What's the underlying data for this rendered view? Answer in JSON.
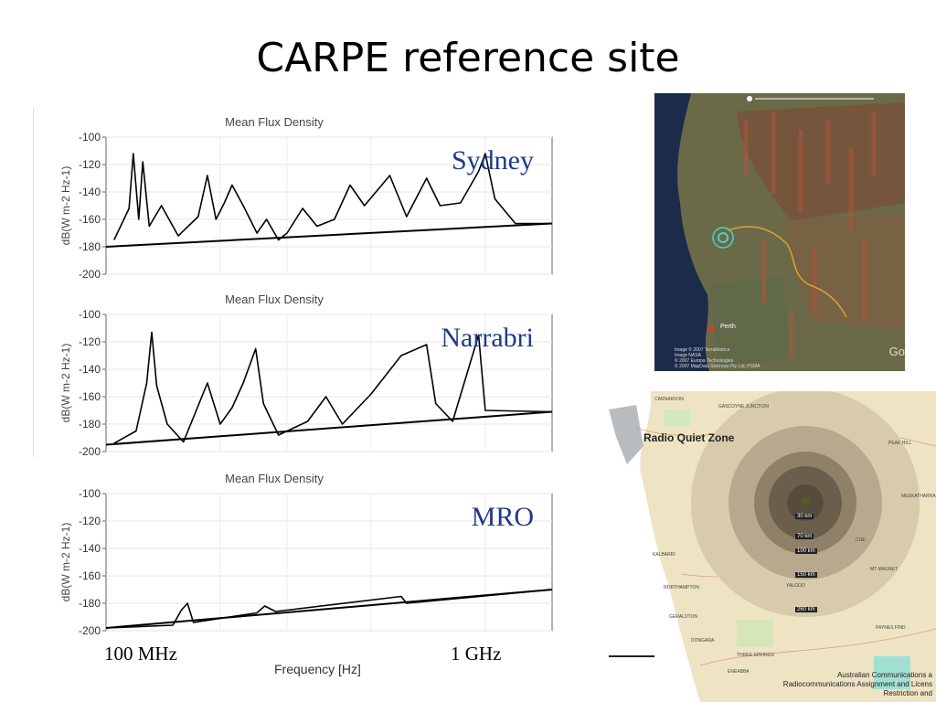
{
  "slide": {
    "title": "CARPE reference site"
  },
  "chart_data": [
    {
      "type": "line",
      "title": "Mean Flux Density",
      "ylabel": "dB(W m-2 Hz-1)",
      "annotation": "Sydney",
      "ylim": [
        -200,
        -100
      ],
      "yticks": [
        "-100",
        "-120",
        "-140",
        "-160",
        "-180",
        "-200"
      ],
      "xscale": "log",
      "xlim": [
        100000000,
        1500000000
      ],
      "baseline": [
        [
          100000000,
          -180
        ],
        [
          1500000000,
          -163
        ]
      ],
      "spectrum": [
        [
          105000000,
          -175
        ],
        [
          115000000,
          -152
        ],
        [
          118000000,
          -112
        ],
        [
          122000000,
          -160
        ],
        [
          125000000,
          -118
        ],
        [
          130000000,
          -165
        ],
        [
          140000000,
          -150
        ],
        [
          155000000,
          -172
        ],
        [
          175000000,
          -158
        ],
        [
          185000000,
          -128
        ],
        [
          195000000,
          -160
        ],
        [
          205000000,
          -148
        ],
        [
          215000000,
          -135
        ],
        [
          230000000,
          -150
        ],
        [
          250000000,
          -170
        ],
        [
          265000000,
          -160
        ],
        [
          285000000,
          -175
        ],
        [
          300000000,
          -170
        ],
        [
          330000000,
          -152
        ],
        [
          360000000,
          -165
        ],
        [
          400000000,
          -160
        ],
        [
          440000000,
          -135
        ],
        [
          480000000,
          -150
        ],
        [
          560000000,
          -128
        ],
        [
          620000000,
          -158
        ],
        [
          700000000,
          -130
        ],
        [
          760000000,
          -150
        ],
        [
          860000000,
          -148
        ],
        [
          960000000,
          -125
        ],
        [
          1000000000,
          -112
        ],
        [
          1060000000,
          -145
        ],
        [
          1200000000,
          -163
        ],
        [
          1500000000,
          -163
        ]
      ]
    },
    {
      "type": "line",
      "title": "Mean Flux Density",
      "ylabel": "dB(W m-2 Hz-1)",
      "annotation": "Narrabri",
      "ylim": [
        -200,
        -100
      ],
      "yticks": [
        "-100",
        "-120",
        "-140",
        "-160",
        "-180",
        "-200"
      ],
      "xscale": "log",
      "xlim": [
        100000000,
        1500000000
      ],
      "baseline": [
        [
          100000000,
          -195
        ],
        [
          1500000000,
          -171
        ]
      ],
      "spectrum": [
        [
          105000000,
          -194
        ],
        [
          120000000,
          -185
        ],
        [
          128000000,
          -150
        ],
        [
          132000000,
          -113
        ],
        [
          136000000,
          -152
        ],
        [
          145000000,
          -180
        ],
        [
          160000000,
          -193
        ],
        [
          185000000,
          -150
        ],
        [
          200000000,
          -180
        ],
        [
          215000000,
          -168
        ],
        [
          230000000,
          -150
        ],
        [
          248000000,
          -125
        ],
        [
          260000000,
          -165
        ],
        [
          285000000,
          -188
        ],
        [
          340000000,
          -178
        ],
        [
          380000000,
          -160
        ],
        [
          420000000,
          -180
        ],
        [
          500000000,
          -158
        ],
        [
          600000000,
          -130
        ],
        [
          700000000,
          -122
        ],
        [
          740000000,
          -165
        ],
        [
          820000000,
          -178
        ],
        [
          960000000,
          -115
        ],
        [
          1000000000,
          -170
        ],
        [
          1500000000,
          -171
        ]
      ]
    },
    {
      "type": "line",
      "title": "Mean Flux Density",
      "ylabel": "dB(W m-2 Hz-1)",
      "annotation": "MRO",
      "xlabel": "Frequency [Hz]",
      "ylim": [
        -200,
        -100
      ],
      "yticks": [
        "-100",
        "-120",
        "-140",
        "-160",
        "-180",
        "-200"
      ],
      "xscale": "log",
      "xlim": [
        100000000,
        1500000000
      ],
      "xtick_labels": [
        {
          "label": "100 MHz",
          "x": 100000000
        },
        {
          "label": "1 GHz",
          "x": 1000000000
        }
      ],
      "baseline": [
        [
          100000000,
          -198
        ],
        [
          1500000000,
          -170
        ]
      ],
      "spectrum": [
        [
          100000000,
          -198
        ],
        [
          150000000,
          -196
        ],
        [
          158000000,
          -185
        ],
        [
          164000000,
          -180
        ],
        [
          170000000,
          -194
        ],
        [
          250000000,
          -187
        ],
        [
          262000000,
          -182
        ],
        [
          280000000,
          -186
        ],
        [
          600000000,
          -175
        ],
        [
          620000000,
          -180
        ],
        [
          1500000000,
          -170
        ]
      ]
    }
  ],
  "maps": {
    "satellite": {
      "place_label": "Perth",
      "credit_lines": [
        "Image © 2007 TerraMetrics",
        "Image NASA",
        "© 2007 Europa Technologies",
        "© 2007 MapData Sciences Pty Ltd, PSMA"
      ],
      "logo": "Go"
    },
    "radio_quiet_zone": {
      "title": "Radio Quiet Zone",
      "ring_labels": [
        "30 km",
        "70 km",
        "100 km",
        "150 km",
        "260 km"
      ],
      "towns": [
        "CARNARVON",
        "GASCOYNE JUNCTION",
        "PEAK HILL",
        "MEEKATHARRA",
        "CUE",
        "MT MAGNET",
        "KALBARRI",
        "NORTHAMPTON",
        "GERALDTON",
        "DONGARA",
        "YALGOO",
        "PAYNES FIND",
        "THREE SPRINGS",
        "ENEABBA"
      ],
      "credit_lines": [
        "Australian Communications a",
        "Radiocommunications Assignment and Licens",
        "Restriction and"
      ]
    }
  }
}
